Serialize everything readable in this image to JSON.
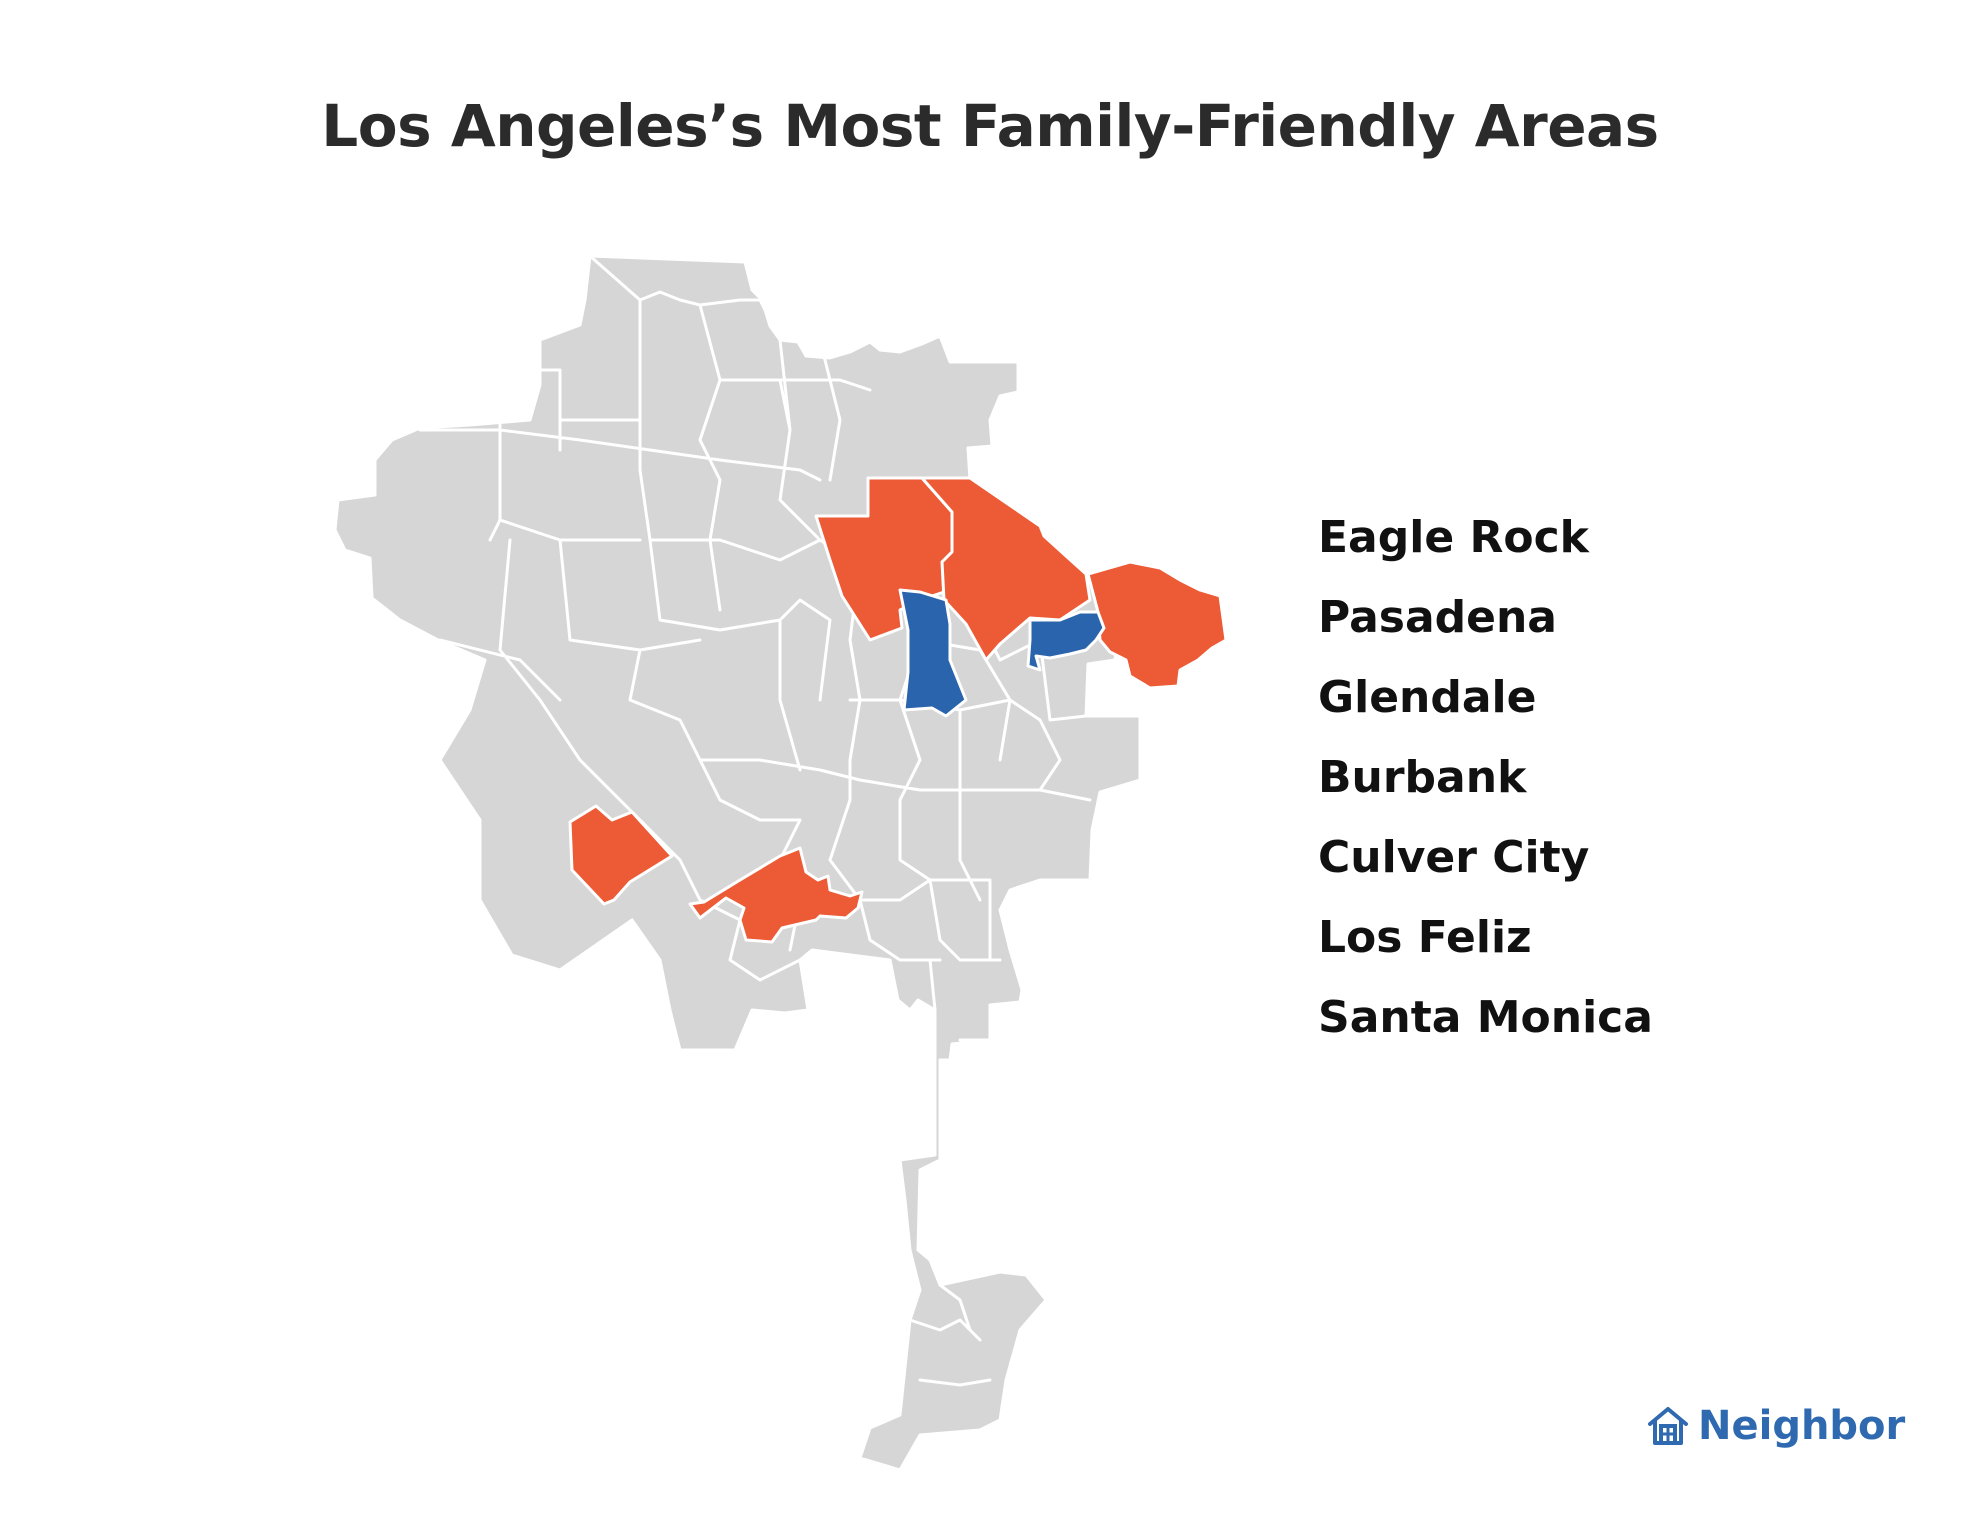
{
  "title": "Los Angeles’s Most Family-Friendly Areas",
  "legend": {
    "items": [
      "Eagle Rock",
      "Pasadena",
      "Glendale",
      "Burbank",
      "Culver City",
      "Los Feliz",
      "Santa Monica"
    ]
  },
  "brand": {
    "name": "Neighbor",
    "icon": "house-icon"
  },
  "colors": {
    "base": "#d6d6d6",
    "highlight_orange": "#ec5a36",
    "highlight_blue": "#2a64ad",
    "border": "#ffffff",
    "title": "#2b2b2b",
    "brand": "#2f6ab1"
  }
}
